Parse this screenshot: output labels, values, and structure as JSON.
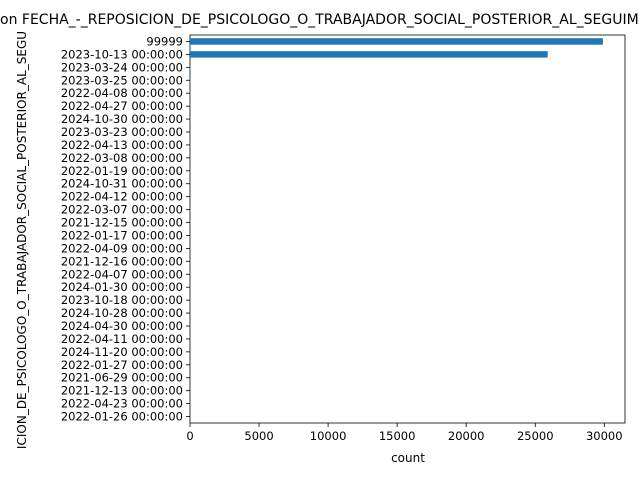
{
  "chart_data": {
    "type": "barh",
    "title": "on FECHA_-_REPOSICION_DE_PSICOLOGO_O_TRABAJADOR_SOCIAL_POSTERIOR_AL_SEGUIMIENTO",
    "ylabel": "ICION_DE_PSICOLOGO_O_TRABAJADOR_SOCIAL_POSTERIOR_AL_SEGU",
    "xlabel": "count",
    "color": "#1f77b4",
    "categories": [
      "99999",
      "2023-10-13 00:00:00",
      "2023-03-24 00:00:00",
      "2023-03-25 00:00:00",
      "2022-04-08 00:00:00",
      "2022-04-27 00:00:00",
      "2024-10-30 00:00:00",
      "2023-03-23 00:00:00",
      "2022-04-13 00:00:00",
      "2022-03-08 00:00:00",
      "2022-01-19 00:00:00",
      "2024-10-31 00:00:00",
      "2022-04-12 00:00:00",
      "2022-03-07 00:00:00",
      "2021-12-15 00:00:00",
      "2022-01-17 00:00:00",
      "2022-04-09 00:00:00",
      "2021-12-16 00:00:00",
      "2022-04-07 00:00:00",
      "2024-01-30 00:00:00",
      "2023-10-18 00:00:00",
      "2024-10-28 00:00:00",
      "2024-04-30 00:00:00",
      "2022-04-11 00:00:00",
      "2024-11-20 00:00:00",
      "2022-01-27 00:00:00",
      "2021-06-29 00:00:00",
      "2021-12-13 00:00:00",
      "2022-04-23 00:00:00",
      "2022-01-26 00:00:00"
    ],
    "values": [
      29900,
      25900,
      30,
      25,
      20,
      18,
      16,
      15,
      14,
      13,
      12,
      11,
      10,
      10,
      9,
      9,
      8,
      8,
      7,
      7,
      6,
      6,
      5,
      5,
      5,
      4,
      4,
      4,
      3,
      3
    ],
    "xlim": [
      0,
      31500
    ],
    "xticks": [
      0,
      5000,
      10000,
      15000,
      20000,
      25000,
      30000
    ]
  }
}
